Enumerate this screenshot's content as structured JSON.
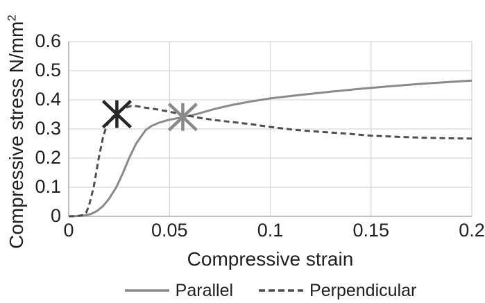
{
  "figure": {
    "background": "#ffffff"
  },
  "chart_data": {
    "type": "line",
    "title": "",
    "xlabel": "Compressive strain",
    "ylabel": "Compressive stress N/mm",
    "ylabel_superscript": "2",
    "xlim": [
      0,
      0.2
    ],
    "ylim": [
      0,
      0.6
    ],
    "grid": true,
    "legend_position": "bottom-center",
    "colors": {
      "gridline": "#d9d9d9",
      "axis": "#ababab",
      "text": "#1f1f1f",
      "background": "#ffffff"
    },
    "xticks": [
      {
        "value": 0,
        "label": "0"
      },
      {
        "value": 0.05,
        "label": "0.05"
      },
      {
        "value": 0.1,
        "label": "0.1"
      },
      {
        "value": 0.15,
        "label": "0.15"
      },
      {
        "value": 0.2,
        "label": "0.2"
      }
    ],
    "yticks": [
      {
        "value": 0,
        "label": "0"
      },
      {
        "value": 0.1,
        "label": "0.1"
      },
      {
        "value": 0.2,
        "label": "0.2"
      },
      {
        "value": 0.3,
        "label": "0.3"
      },
      {
        "value": 0.4,
        "label": "0.4"
      },
      {
        "value": 0.5,
        "label": "0.5"
      },
      {
        "value": 0.6,
        "label": "0.6"
      }
    ],
    "series": [
      {
        "name": "Parallel",
        "line_style": "solid",
        "color": "#8a8a8a",
        "stroke_width": 3,
        "points": [
          [
            0,
            0
          ],
          [
            0.004,
            0.001
          ],
          [
            0.008,
            0.003
          ],
          [
            0.011,
            0.008
          ],
          [
            0.014,
            0.018
          ],
          [
            0.017,
            0.035
          ],
          [
            0.02,
            0.06
          ],
          [
            0.0236,
            0.1
          ],
          [
            0.027,
            0.15
          ],
          [
            0.03,
            0.2
          ],
          [
            0.0335,
            0.25
          ],
          [
            0.036,
            0.275
          ],
          [
            0.0383,
            0.297
          ],
          [
            0.041,
            0.31
          ],
          [
            0.045,
            0.322
          ],
          [
            0.05,
            0.332
          ],
          [
            0.057,
            0.341
          ],
          [
            0.064,
            0.352
          ],
          [
            0.072,
            0.368
          ],
          [
            0.08,
            0.381
          ],
          [
            0.09,
            0.394
          ],
          [
            0.1,
            0.405
          ],
          [
            0.115,
            0.417
          ],
          [
            0.13,
            0.428
          ],
          [
            0.145,
            0.438
          ],
          [
            0.16,
            0.447
          ],
          [
            0.175,
            0.455
          ],
          [
            0.19,
            0.462
          ],
          [
            0.2,
            0.466
          ]
        ]
      },
      {
        "name": "Perpendicular",
        "line_style": "dashed",
        "color": "#4f4f4f",
        "stroke_width": 3,
        "points": [
          [
            0,
            0
          ],
          [
            0.004,
            0.001
          ],
          [
            0.007,
            0.004
          ],
          [
            0.0086,
            0.012
          ],
          [
            0.01,
            0.035
          ],
          [
            0.0124,
            0.1
          ],
          [
            0.0149,
            0.2
          ],
          [
            0.017,
            0.27
          ],
          [
            0.0183,
            0.3
          ],
          [
            0.02,
            0.328
          ],
          [
            0.022,
            0.343
          ],
          [
            0.024,
            0.352
          ],
          [
            0.026,
            0.363
          ],
          [
            0.028,
            0.372
          ],
          [
            0.031,
            0.379
          ],
          [
            0.034,
            0.378
          ],
          [
            0.038,
            0.373
          ],
          [
            0.043,
            0.368
          ],
          [
            0.048,
            0.362
          ],
          [
            0.053,
            0.355
          ],
          [
            0.058,
            0.347
          ],
          [
            0.065,
            0.338
          ],
          [
            0.073,
            0.33
          ],
          [
            0.082,
            0.323
          ],
          [
            0.092,
            0.315
          ],
          [
            0.1,
            0.307
          ],
          [
            0.112,
            0.297
          ],
          [
            0.125,
            0.29
          ],
          [
            0.138,
            0.284
          ],
          [
            0.15,
            0.277
          ],
          [
            0.163,
            0.273
          ],
          [
            0.175,
            0.27
          ],
          [
            0.188,
            0.268
          ],
          [
            0.2,
            0.267
          ]
        ]
      }
    ],
    "markers": [
      {
        "shape": "asterisk",
        "on_series": "Perpendicular",
        "x": 0.0239,
        "y": 0.351,
        "color": "#262626"
      },
      {
        "shape": "asterisk",
        "on_series": "Parallel",
        "x": 0.0566,
        "y": 0.341,
        "color": "#8a8a8a"
      }
    ]
  }
}
